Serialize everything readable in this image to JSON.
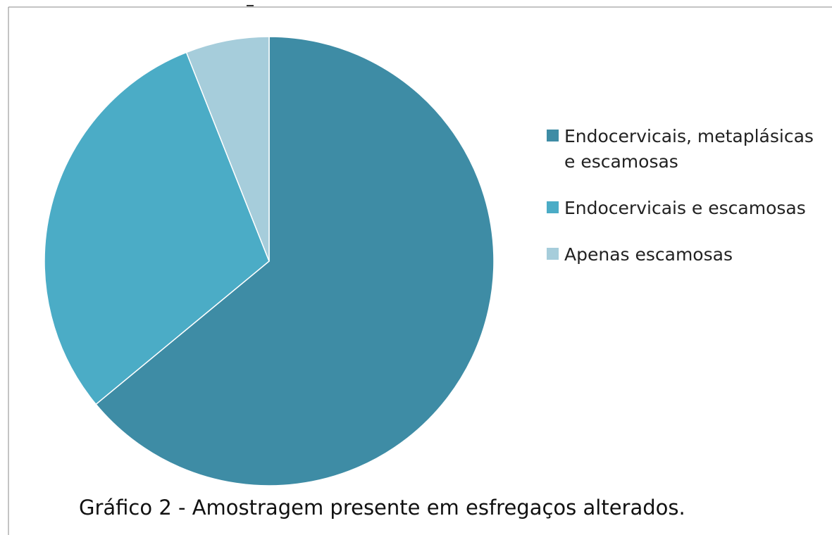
{
  "chart_data": {
    "type": "pie",
    "caption": "Gráfico 2 - Amostragem presente em esfregaços alterados.",
    "categories": [
      "Endocervicais, metaplásicas e escamosas",
      "Endocervicais e escamosas",
      "Apenas escamosas"
    ],
    "values": [
      64,
      30,
      6
    ],
    "colors": [
      "#3e8ca5",
      "#4bacc6",
      "#a6cddb"
    ]
  }
}
